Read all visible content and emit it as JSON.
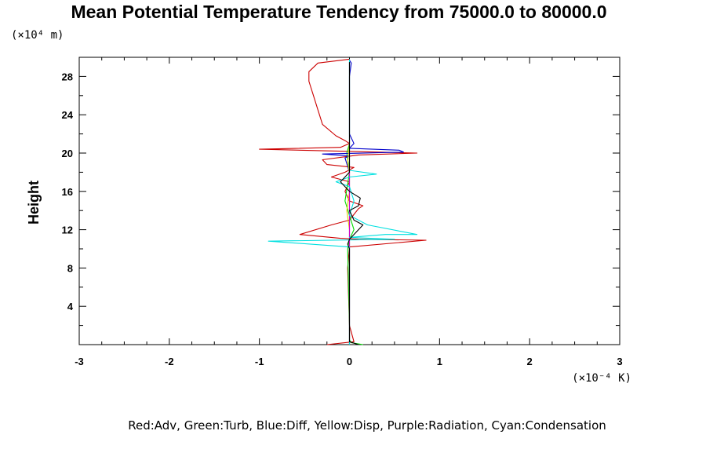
{
  "chart_data": {
    "type": "line",
    "title": "Mean Potential Temperature Tendency from 75000.0 to 80000.0",
    "ylabel": "Height",
    "y_unit_label": "(×10⁴ m)",
    "x_unit_label": "(×10⁻⁴ K)",
    "xlim": [
      -3,
      3
    ],
    "ylim": [
      0,
      30
    ],
    "x_ticks": [
      -3,
      -2,
      -1,
      0,
      1,
      2,
      3
    ],
    "x_tick_labels": [
      "-3",
      "-2",
      "-1",
      "0",
      "1",
      "2",
      "3"
    ],
    "y_ticks": [
      4,
      8,
      12,
      16,
      20,
      24,
      28
    ],
    "y_tick_labels": [
      "4",
      "8",
      "12",
      "16",
      "20",
      "24",
      "28"
    ],
    "grid": false,
    "caption": "Red:Adv, Green:Turb, Blue:Diff, Yellow:Disp, Purple:Radiation, Cyan:Condensation",
    "series": [
      {
        "color": "#ff0000",
        "stroke": "#cc0000",
        "x": [
          -0.25,
          0.05,
          0.0,
          -0.02,
          0.0,
          0.85,
          0.1,
          -0.1,
          -0.55,
          -0.2,
          0.0,
          0.1,
          0.15,
          0.0,
          -0.05,
          0.0,
          -0.2,
          -0.05,
          0.05,
          -0.25,
          -0.3,
          0.1,
          0.75,
          -0.1,
          -1.0,
          -0.1,
          0.0,
          -0.05,
          -0.15,
          -0.3,
          -0.35,
          -0.4,
          -0.45,
          -0.45,
          -0.35,
          0.0
        ],
        "y": [
          0.0,
          0.3,
          2,
          8,
          10.2,
          10.9,
          11.0,
          11.1,
          11.5,
          12.5,
          13,
          14.2,
          14.5,
          15,
          16,
          17,
          17.5,
          18,
          18.5,
          18.8,
          19.3,
          19.8,
          20.0,
          20.2,
          20.4,
          20.6,
          21,
          21.3,
          21.8,
          23,
          24.5,
          26,
          27.5,
          28.5,
          29.4,
          29.8
        ]
      },
      {
        "color": "#00ff00",
        "stroke": "#00dd00",
        "x": [
          0.15,
          0.02,
          0.0,
          0.0,
          -0.02,
          0.0,
          0.05,
          -0.05,
          0.0,
          -0.03,
          0.0,
          0.0
        ],
        "y": [
          0.0,
          0.2,
          0.5,
          2,
          10,
          11,
          12,
          15,
          18,
          20,
          21,
          29.5
        ]
      },
      {
        "color": "#0000ff",
        "stroke": "#0000cc",
        "x": [
          0.0,
          0.0,
          -0.05,
          0.0,
          -0.3,
          0.6,
          0.55,
          0.0,
          0.05,
          0.0,
          0.0,
          0.02,
          0.0
        ],
        "y": [
          0.0,
          18,
          19.5,
          19.7,
          19.9,
          20.1,
          20.3,
          20.5,
          21,
          22,
          28,
          29.4,
          29.7
        ]
      },
      {
        "color": "#ffff00",
        "stroke": "#e6c800",
        "x": [
          0.0,
          0.0,
          -0.03,
          0.0,
          0.0,
          -0.02,
          0.0
        ],
        "y": [
          0.0,
          12,
          14,
          16,
          18,
          19,
          21
        ]
      },
      {
        "color": "#ff00ff",
        "stroke": "#cc00cc",
        "x": [
          0.0,
          0.0,
          0.0
        ],
        "y": [
          0.0,
          15,
          29.5
        ]
      },
      {
        "color": "#00ffff",
        "stroke": "#00e0e0",
        "x": [
          0.0,
          0.0,
          0.0,
          -0.9,
          0.5,
          0.0,
          0.4,
          0.75,
          0.2,
          0.0,
          0.05,
          0.0,
          -0.15,
          0.0,
          0.3,
          0.0,
          0.0,
          0.0,
          0.0
        ],
        "y": [
          0.0,
          2,
          10.2,
          10.8,
          11.0,
          11.2,
          11.5,
          11.5,
          12.5,
          13.5,
          15,
          16.5,
          17.0,
          17.5,
          17.8,
          18.2,
          20,
          28,
          29.8
        ]
      },
      {
        "color": "#000000",
        "stroke": "#000000",
        "x": [
          0.1,
          0.0,
          0.0,
          -0.02,
          0.0,
          0.1,
          0.15,
          0.05,
          0.0,
          0.1,
          0.12,
          0.0,
          -0.1,
          0.0,
          0.0
        ],
        "y": [
          0.0,
          0.3,
          10,
          10.5,
          11.0,
          12.0,
          12.5,
          13,
          14,
          14.5,
          15.3,
          16,
          17,
          18,
          29.5
        ]
      }
    ]
  }
}
